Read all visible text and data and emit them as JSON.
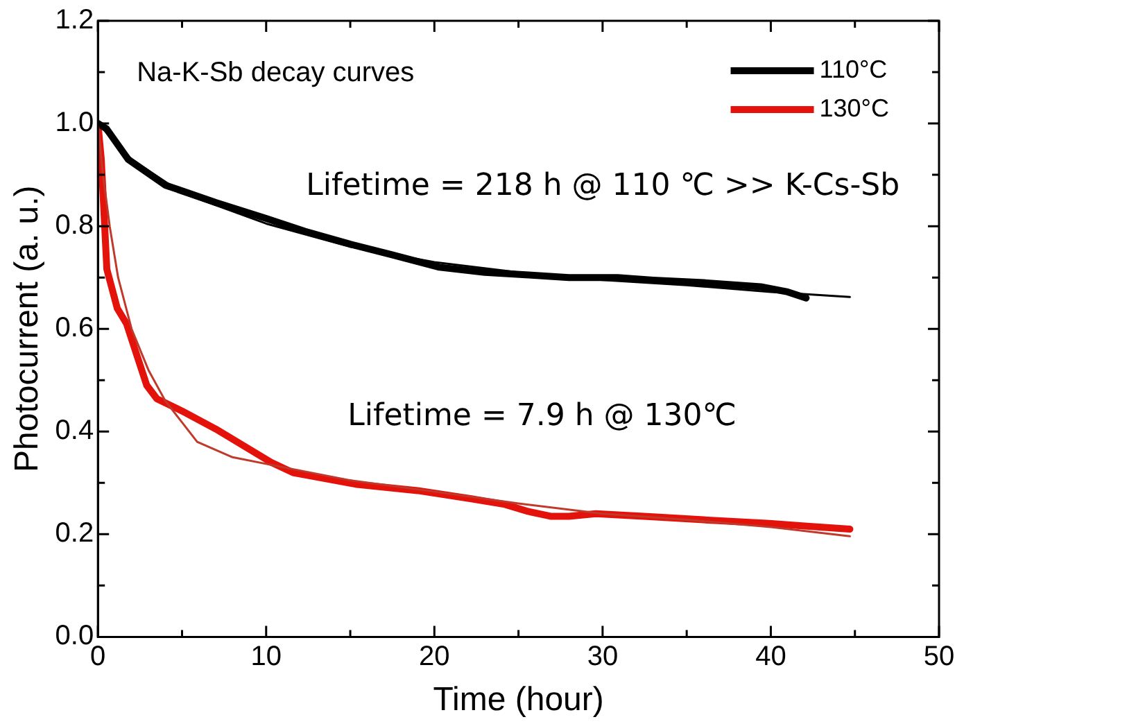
{
  "chart_data": {
    "type": "line",
    "xlabel": "Time (hour)",
    "ylabel": "Photocurrent (a. u.)",
    "xlim": [
      0,
      50
    ],
    "xticks": [
      0,
      10,
      20,
      30,
      40,
      50
    ],
    "ylim": [
      0,
      1.2
    ],
    "yticks": [
      {
        "value": 0,
        "label": "0.0"
      },
      {
        "value": 0.2,
        "label": "0.2"
      },
      {
        "value": 0.4,
        "label": "0.4"
      },
      {
        "value": 0.6,
        "label": "0.6"
      },
      {
        "value": 0.8,
        "label": "0.8"
      },
      {
        "value": 1.0,
        "label": "1.0"
      },
      {
        "value": 1.2,
        "label": "1.2"
      }
    ],
    "grid": false,
    "legend": "top right",
    "marker": "none",
    "line_style": "solid",
    "annotations": [
      "Na-K-Sb decay curves",
      "Lifetime = 218 h @ 110 ℃ >> K-Cs-Sb",
      "Lifetime = 7.9 h @ 130℃"
    ],
    "series": [
      {
        "name": "110°C",
        "color": "#000000",
        "x": [
          0,
          0.5,
          1.8,
          4,
          7,
          10,
          12.3,
          15,
          17.4,
          20.3,
          23,
          25.6,
          28,
          30.9,
          33,
          36,
          39.4,
          41,
          42.1
        ],
        "values": [
          1.0,
          0.99,
          0.93,
          0.88,
          0.846,
          0.815,
          0.79,
          0.765,
          0.745,
          0.72,
          0.71,
          0.705,
          0.7,
          0.7,
          0.695,
          0.69,
          0.682,
          0.672,
          0.66
        ]
      },
      {
        "name": "130°C",
        "color": "#e3120b",
        "x": [
          0,
          0.2,
          0.53,
          1.15,
          1.7,
          2.9,
          3.5,
          5,
          7,
          10.3,
          11.6,
          15.4,
          19,
          22.2,
          24.2,
          25.5,
          26.9,
          28,
          29.6,
          33,
          36,
          39.9,
          42,
          44.7
        ],
        "values": [
          1.0,
          0.93,
          0.716,
          0.64,
          0.61,
          0.49,
          0.464,
          0.44,
          0.405,
          0.34,
          0.32,
          0.297,
          0.285,
          0.269,
          0.258,
          0.245,
          0.235,
          0.235,
          0.24,
          0.234,
          0.228,
          0.221,
          0.216,
          0.21
        ]
      },
      {
        "color": "#000000",
        "x": [
          0,
          2,
          5,
          10,
          15,
          20,
          25,
          30,
          35,
          40,
          44.7
        ],
        "values": [
          1.0,
          0.93,
          0.865,
          0.805,
          0.76,
          0.73,
          0.71,
          0.695,
          0.685,
          0.672,
          0.662
        ]
      },
      {
        "color": "#c0392b",
        "x": [
          0,
          0.3,
          0.7,
          1.2,
          2,
          3,
          4,
          5.9,
          8,
          10.3,
          15,
          20,
          25,
          30,
          35,
          40,
          44.7
        ],
        "values": [
          1.0,
          0.9,
          0.8,
          0.7,
          0.6,
          0.52,
          0.46,
          0.38,
          0.35,
          0.335,
          0.305,
          0.283,
          0.26,
          0.24,
          0.228,
          0.214,
          0.196
        ]
      }
    ]
  }
}
